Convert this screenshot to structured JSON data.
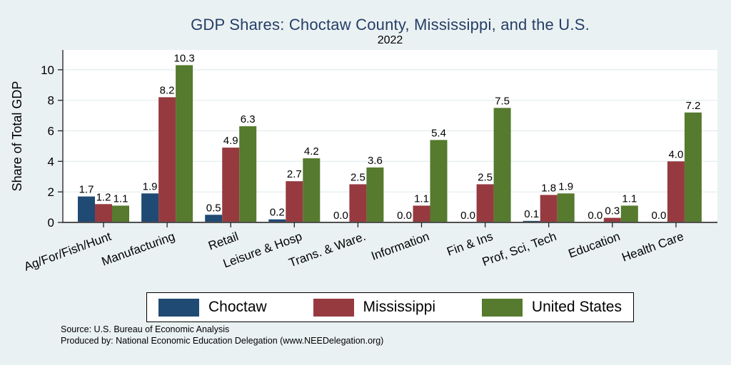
{
  "chart_data": {
    "type": "bar",
    "title": "GDP Shares: Choctaw County, Mississippi, and the U.S.",
    "subtitle": "2022",
    "ylabel": "Share of Total GDP",
    "categories": [
      "Ag/For/Fish/Hunt",
      "Manufacturing",
      "Retail",
      "Leisure & Hosp",
      "Trans. & Ware.",
      "Information",
      "Fin & Ins",
      "Prof, Sci, Tech",
      "Education",
      "Health Care"
    ],
    "series": [
      {
        "name": "Choctaw",
        "color": "#1f4a73",
        "values": [
          1.7,
          1.9,
          0.5,
          0.2,
          0.0,
          0.0,
          0.0,
          0.1,
          0.0,
          0.0
        ]
      },
      {
        "name": "Mississippi",
        "color": "#963a40",
        "values": [
          1.2,
          8.2,
          4.9,
          2.7,
          2.5,
          1.1,
          2.5,
          1.8,
          0.3,
          4.0
        ]
      },
      {
        "name": "United States",
        "color": "#567a2e",
        "values": [
          1.1,
          10.3,
          6.3,
          4.2,
          3.6,
          5.4,
          7.5,
          1.9,
          1.1,
          7.2
        ]
      }
    ],
    "ylim": [
      0,
      11.3
    ],
    "yticks": [
      0,
      2,
      4,
      6,
      8,
      10
    ],
    "grid": true,
    "bar_labels": true,
    "legend_position": "bottom"
  },
  "colors": {
    "background": "#eaf1f2",
    "plot_background": "#ffffff",
    "grid": "#e2ecee",
    "axis": "#4f4f4f",
    "tick": "#222222",
    "title_text": "#253d66"
  },
  "footer": {
    "source_line1": "Source: U.S. Bureau of Economic Analysis",
    "source_line2": "Produced by: National Economic Education Delegation (www.NEEDelegation.org)"
  }
}
